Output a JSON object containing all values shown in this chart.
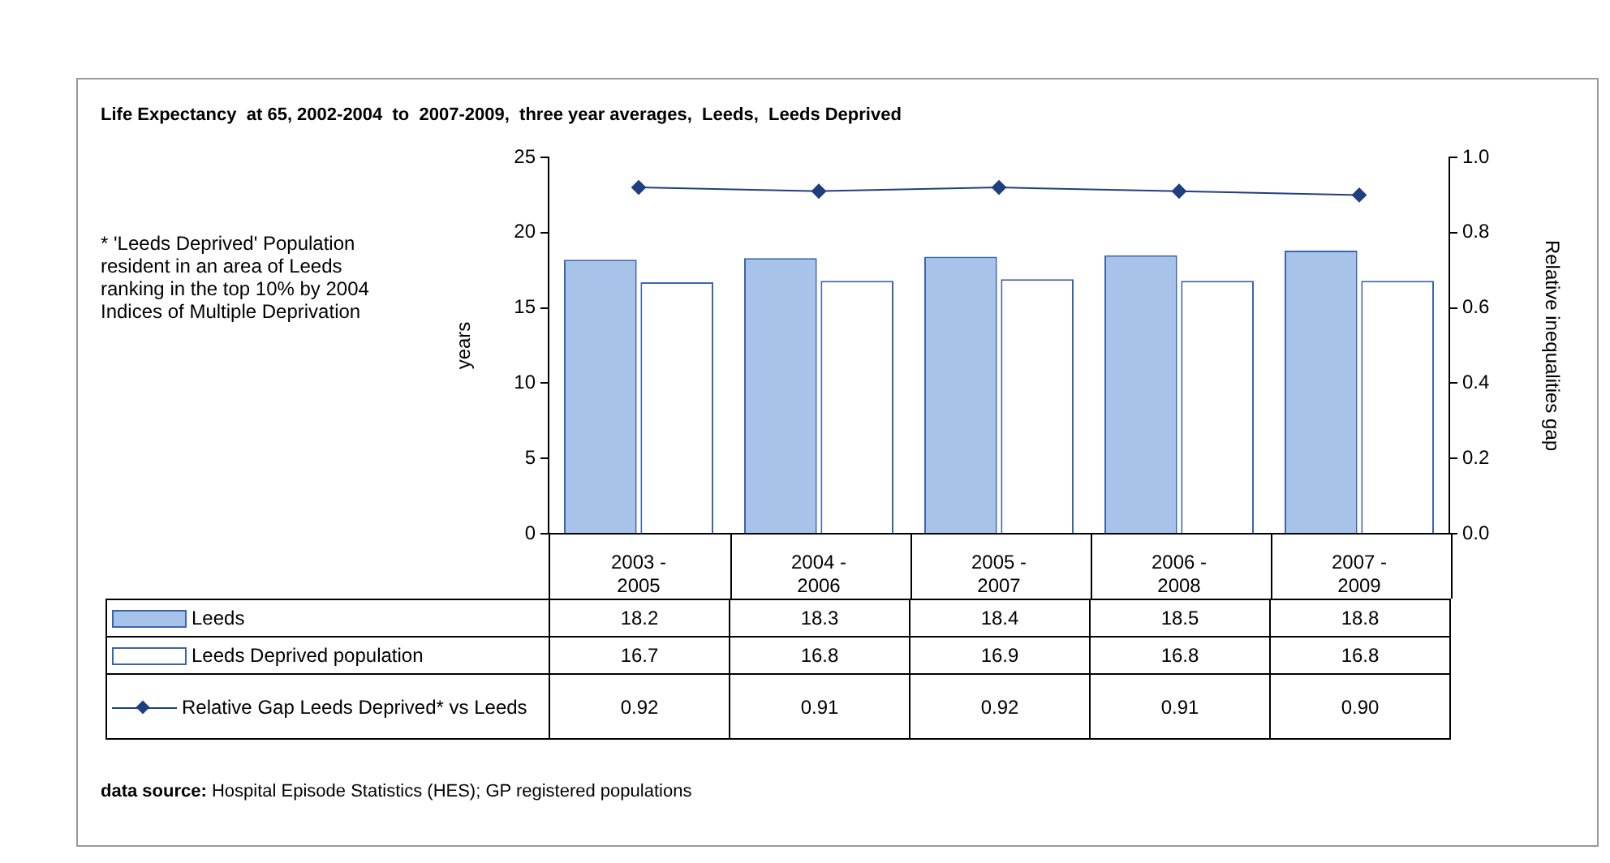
{
  "chart_data": {
    "type": "bar",
    "title": "Life Expectancy  at 65, 2002-2004  to  2007-2009,  three year averages,  Leeds,  Leeds Deprived",
    "categories": [
      "2003 - 2005",
      "2004 - 2006",
      "2005 - 2007",
      "2006 - 2008",
      "2007 - 2009"
    ],
    "series": [
      {
        "name": "Leeds",
        "color": "#a7c3e9",
        "values": [
          18.2,
          18.3,
          18.4,
          18.5,
          18.8
        ],
        "value_labels": [
          "18.2",
          "18.3",
          "18.4",
          "18.5",
          "18.8"
        ]
      },
      {
        "name": "Leeds Deprived population",
        "color": "#ffffff",
        "values": [
          16.7,
          16.8,
          16.9,
          16.8,
          16.8
        ],
        "value_labels": [
          "16.7",
          "16.8",
          "16.9",
          "16.8",
          "16.8"
        ]
      },
      {
        "name": "Relative Gap Leeds Deprived* vs Leeds",
        "type": "line",
        "axis": "y2",
        "color": "#1f3f7f",
        "marker": "diamond",
        "line_style": "solid",
        "values": [
          0.92,
          0.91,
          0.92,
          0.91,
          0.9
        ],
        "value_labels": [
          "0.92",
          "0.91",
          "0.92",
          "0.91",
          "0.90"
        ]
      }
    ],
    "ylabel": "years",
    "y2label": "Relative inequalities gap",
    "ylim": [
      0,
      25
    ],
    "yticks": [
      0,
      5,
      10,
      15,
      20,
      25
    ],
    "y2lim": [
      0,
      1
    ],
    "y2ticks": [
      {
        "value": 0,
        "label": "0.0"
      },
      {
        "value": 0.2,
        "label": "0.2"
      },
      {
        "value": 0.4,
        "label": "0.4"
      },
      {
        "value": 0.6,
        "label": "0.6"
      },
      {
        "value": 0.8,
        "label": "0.8"
      },
      {
        "value": 1,
        "label": "1.0"
      }
    ],
    "legend": "bottom",
    "annotations": [
      "* 'Leeds Deprived' Population resident in an area of Leeds ranking in the top 10% by 2004 Indices of Multiple Deprivation",
      "data source: Hospital Episode Statistics (HES); GP registered populations"
    ]
  }
}
